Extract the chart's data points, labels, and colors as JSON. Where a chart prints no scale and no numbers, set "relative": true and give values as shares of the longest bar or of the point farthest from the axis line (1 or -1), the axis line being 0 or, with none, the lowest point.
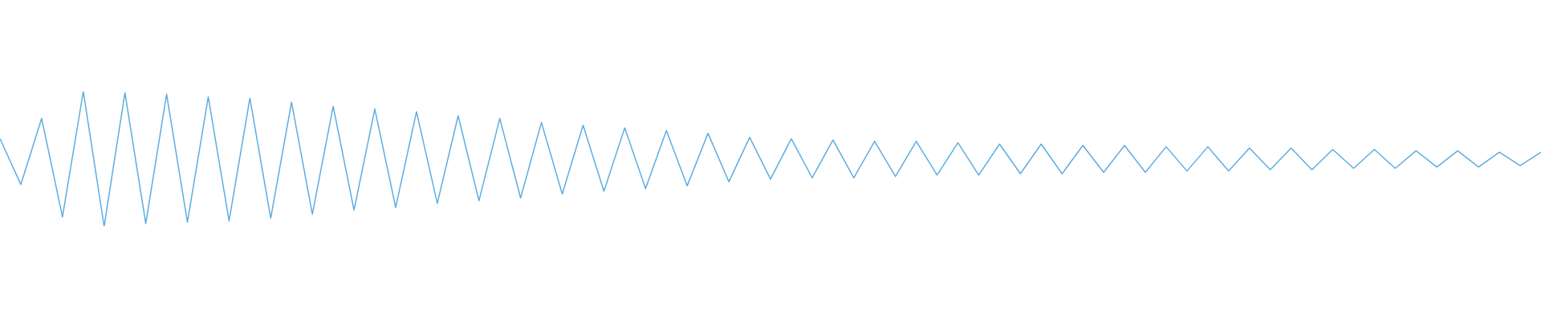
{
  "chart_data": {
    "type": "line",
    "relative": true,
    "legend": false,
    "marker": "none",
    "categories": [
      null,
      null,
      null,
      null,
      null,
      null,
      null,
      null,
      null,
      null,
      null,
      null,
      null,
      null,
      null,
      null,
      null,
      null,
      null,
      null,
      null,
      null,
      null,
      null,
      null,
      null,
      null,
      null,
      null,
      null,
      null,
      null,
      null,
      null,
      null,
      null,
      null,
      null,
      null,
      null,
      null,
      null,
      null,
      null,
      null,
      null,
      null,
      null,
      null,
      null,
      null,
      null,
      null,
      null,
      null,
      null,
      null,
      null,
      null,
      null,
      null,
      null,
      null,
      null,
      null,
      null,
      null,
      null,
      null,
      null,
      null,
      null,
      null,
      null,
      null
    ],
    "series": [
      {
        "color": "#5dade2",
        "values": [
          0.65,
          0.31,
          0.8,
          0.07,
          1.0,
          0,
          0.99,
          0.02,
          0.98,
          0.03,
          0.96,
          0.04,
          0.95,
          0.06,
          0.92,
          0.09,
          0.89,
          0.12,
          0.87,
          0.14,
          0.85,
          0.17,
          0.82,
          0.19,
          0.8,
          0.21,
          0.77,
          0.24,
          0.75,
          0.26,
          0.73,
          0.28,
          0.71,
          0.3,
          0.69,
          0.33,
          0.66,
          0.35,
          0.65,
          0.36,
          0.64,
          0.36,
          0.63,
          0.37,
          0.63,
          0.38,
          0.62,
          0.38,
          0.61,
          0.39,
          0.61,
          0.39,
          0.6,
          0.4,
          0.6,
          0.4,
          0.59,
          0.41,
          0.59,
          0.41,
          0.58,
          0.42,
          0.58,
          0.42,
          0.57,
          0.43,
          0.57,
          0.43,
          0.56,
          0.44,
          0.56,
          0.44,
          0.55,
          0.45,
          0.55
        ]
      }
    ]
  }
}
